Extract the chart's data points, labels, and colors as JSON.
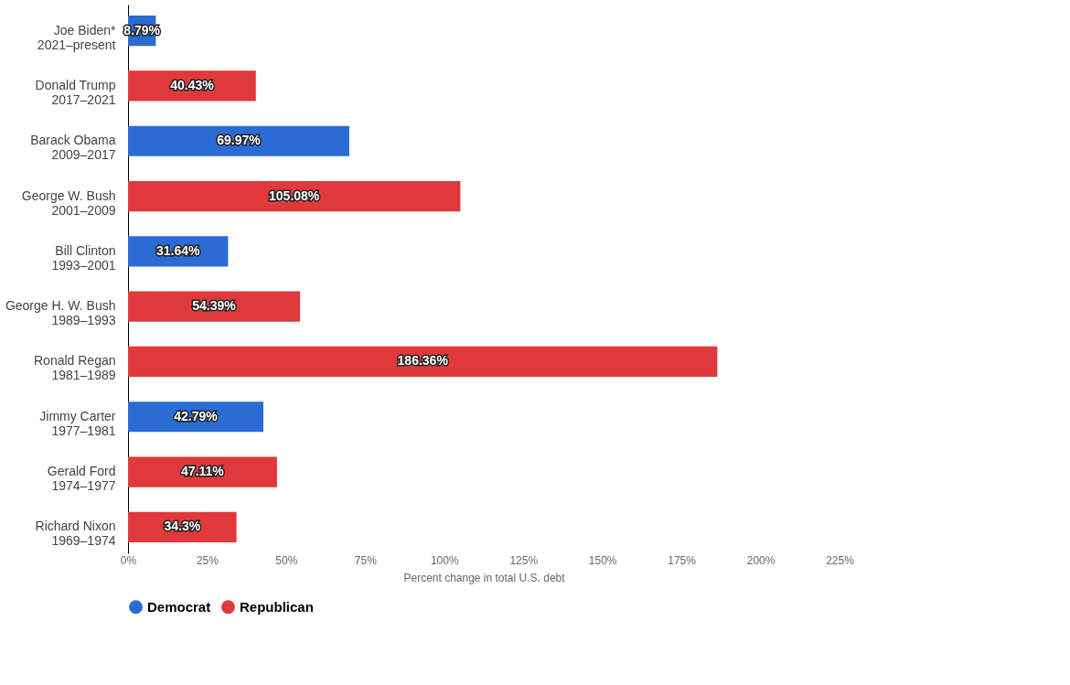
{
  "chart_data": {
    "type": "bar",
    "orientation": "horizontal",
    "xlabel": "Percent change in total U.S. debt",
    "categories": [
      "Joe Biden*\n2021–present",
      "Donald Trump\n2017–2021",
      "Barack Obama\n2009–2017",
      "George W. Bush\n2001–2009",
      "Bill Clinton\n1993–2001",
      "George H. W. Bush\n1989–1993",
      "Ronald Regan\n1981–1989",
      "Jimmy Carter\n1977–1981",
      "Gerald Ford\n1974–1977",
      "Richard Nixon\n1969–1974"
    ],
    "series": [
      {
        "name": "Democrat",
        "color": "#2b6cd4",
        "values": [
          8.79,
          null,
          69.97,
          null,
          31.64,
          null,
          null,
          42.79,
          null,
          null
        ],
        "value_labels": [
          "8.79%",
          null,
          "69.97%",
          null,
          "31.64%",
          null,
          null,
          "42.79%",
          null,
          null
        ]
      },
      {
        "name": "Republican",
        "color": "#e0393c",
        "values": [
          null,
          40.43,
          null,
          105.08,
          null,
          54.39,
          186.36,
          null,
          47.11,
          34.3
        ],
        "value_labels": [
          null,
          "40.43%",
          null,
          "105.08%",
          null,
          "54.39%",
          "186.36%",
          null,
          "47.11%",
          "34.3%"
        ]
      }
    ],
    "xlim": [
      0,
      225
    ],
    "xticks": [
      {
        "value": 0,
        "label": "0%"
      },
      {
        "value": 25,
        "label": "25%"
      },
      {
        "value": 50,
        "label": "50%"
      },
      {
        "value": 75,
        "label": "75%"
      },
      {
        "value": 100,
        "label": "100%"
      },
      {
        "value": 125,
        "label": "125%"
      },
      {
        "value": 150,
        "label": "150%"
      },
      {
        "value": 175,
        "label": "175%"
      },
      {
        "value": 200,
        "label": "200%"
      },
      {
        "value": 225,
        "label": "225%"
      }
    ],
    "legend": "bottom",
    "grid": false
  }
}
